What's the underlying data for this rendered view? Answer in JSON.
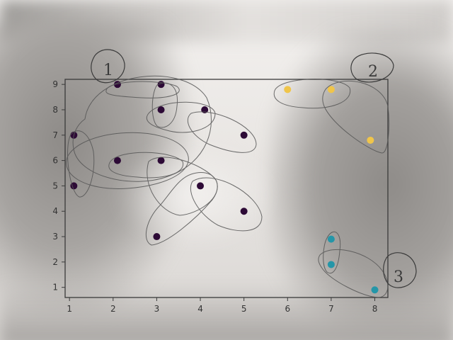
{
  "chart_data": {
    "type": "scatter",
    "title": "",
    "xlabel": "",
    "ylabel": "",
    "xlim": [
      0.9,
      8.3
    ],
    "ylim": [
      0.6,
      9.2
    ],
    "grid": false,
    "x_ticks": [
      "1",
      "2",
      "3",
      "4",
      "5",
      "6",
      "7",
      "8"
    ],
    "y_ticks": [
      "1",
      "2",
      "3",
      "4",
      "5",
      "6",
      "7",
      "8",
      "9"
    ],
    "series": [
      {
        "color": "#2d0a36",
        "points": [
          [
            1.1,
            7
          ],
          [
            1.1,
            5
          ],
          [
            2.1,
            9
          ],
          [
            3.1,
            9
          ],
          [
            3.1,
            8
          ],
          [
            4.1,
            8
          ],
          [
            5,
            7
          ],
          [
            2.1,
            6
          ],
          [
            3.1,
            6
          ],
          [
            4,
            5
          ],
          [
            5,
            4
          ],
          [
            3,
            3
          ]
        ]
      },
      {
        "color": "#f0c54a",
        "points": [
          [
            6,
            8.8
          ],
          [
            7,
            8.8
          ],
          [
            7.9,
            6.8
          ]
        ]
      },
      {
        "color": "#2596a8",
        "points": [
          [
            7,
            2.9
          ],
          [
            7,
            1.9
          ],
          [
            8,
            0.9
          ]
        ]
      }
    ],
    "annotations": [
      "1",
      "2",
      "3"
    ]
  }
}
